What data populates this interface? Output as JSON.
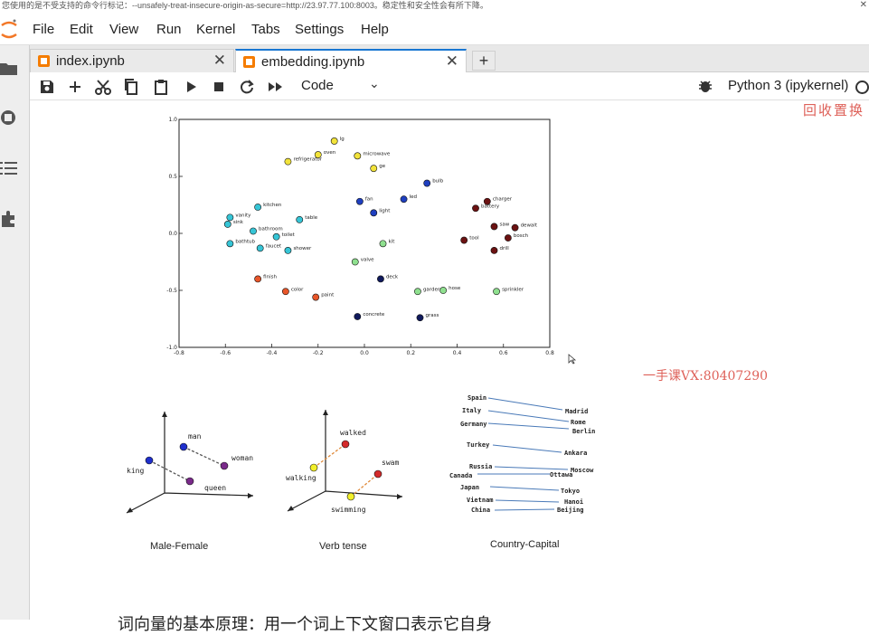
{
  "warning_bar": {
    "text": "您使用的是不受支持的命令行标记：--unsafely-treat-insecure-origin-as-secure=http://23.97.77.100:8003。稳定性和安全性会有所下降。"
  },
  "menu": [
    "File",
    "Edit",
    "View",
    "Run",
    "Kernel",
    "Tabs",
    "Settings",
    "Help"
  ],
  "tabs": [
    {
      "label": "index.ipynb",
      "active": false
    },
    {
      "label": "embedding.ipynb",
      "active": true
    }
  ],
  "toolbar": {
    "cell_type": "Code",
    "kernel": "Python 3 (ipykernel)"
  },
  "watermarks": {
    "top_right": "回收置换",
    "middle": "一手课VX:80407290"
  },
  "analogy_captions": [
    "Male-Female",
    "Verb tense",
    "Country-Capital"
  ],
  "male_female_words": [
    "man",
    "woman",
    "king",
    "queen"
  ],
  "verb_tense_words": [
    "walked",
    "swam",
    "walking",
    "swimming"
  ],
  "countries": [
    "Spain",
    "Italy",
    "Germany",
    "Turkey",
    "Russia",
    "Canada",
    "Japan",
    "Vietnam",
    "China"
  ],
  "capitals": [
    "Madrid",
    "Rome",
    "Berlin",
    "Ankara",
    "Moscow",
    "Ottawa",
    "Tokyo",
    "Hanoi",
    "Beijing"
  ],
  "bottom_text": "词向量的基本原理：用一个词上下文窗口表示它自身",
  "colors": {
    "accent": "#1976d2",
    "tab_icon": "#f57c00",
    "watermark": "#d9463d"
  },
  "chart_data": {
    "type": "scatter",
    "xlim": [
      -0.8,
      0.8
    ],
    "ylim": [
      -1.0,
      1.0
    ],
    "x_ticks": [
      "-0.8",
      "-0.6",
      "-0.4",
      "-0.2",
      "0.0",
      "0.2",
      "0.4",
      "0.6",
      "0.8"
    ],
    "y_ticks": [
      "1.0",
      "0.5",
      "0.0",
      "-0.5",
      "-1.0"
    ],
    "grid": false,
    "series": [
      {
        "color": "#f2e33a",
        "points": [
          {
            "label": "lg",
            "x": -0.13,
            "y": 0.81
          },
          {
            "label": "oven",
            "x": -0.2,
            "y": 0.69
          },
          {
            "label": "microwave",
            "x": -0.03,
            "y": 0.68
          },
          {
            "label": "refrigerator",
            "x": -0.33,
            "y": 0.63
          },
          {
            "label": "ge",
            "x": 0.04,
            "y": 0.57
          }
        ]
      },
      {
        "color": "#1f3fbf",
        "points": [
          {
            "label": "bulb",
            "x": 0.27,
            "y": 0.44
          },
          {
            "label": "led",
            "x": 0.17,
            "y": 0.3
          },
          {
            "label": "fan",
            "x": -0.02,
            "y": 0.28
          },
          {
            "label": "light",
            "x": 0.04,
            "y": 0.18
          }
        ]
      },
      {
        "color": "#6b1212",
        "points": [
          {
            "label": "charger",
            "x": 0.53,
            "y": 0.28
          },
          {
            "label": "battery",
            "x": 0.48,
            "y": 0.22
          },
          {
            "label": "saw",
            "x": 0.56,
            "y": 0.06
          },
          {
            "label": "dewalt",
            "x": 0.65,
            "y": 0.05
          },
          {
            "label": "bosch",
            "x": 0.62,
            "y": -0.04
          },
          {
            "label": "tool",
            "x": 0.43,
            "y": -0.06
          },
          {
            "label": "drill",
            "x": 0.56,
            "y": -0.15
          }
        ]
      },
      {
        "color": "#36c5d6",
        "points": [
          {
            "label": "kitchen",
            "x": -0.46,
            "y": 0.23
          },
          {
            "label": "table",
            "x": -0.28,
            "y": 0.12
          },
          {
            "label": "vanity",
            "x": -0.58,
            "y": 0.14
          },
          {
            "label": "sink",
            "x": -0.59,
            "y": 0.08
          },
          {
            "label": "bathroom",
            "x": -0.48,
            "y": 0.02
          },
          {
            "label": "toilet",
            "x": -0.38,
            "y": -0.03
          },
          {
            "label": "bathtub",
            "x": -0.58,
            "y": -0.09
          },
          {
            "label": "faucet",
            "x": -0.45,
            "y": -0.13
          },
          {
            "label": "shower",
            "x": -0.33,
            "y": -0.15
          }
        ]
      },
      {
        "color": "#8fe08f",
        "points": [
          {
            "label": "kit",
            "x": 0.08,
            "y": -0.09
          },
          {
            "label": "valve",
            "x": -0.04,
            "y": -0.25
          },
          {
            "label": "garden",
            "x": 0.23,
            "y": -0.51
          },
          {
            "label": "hose",
            "x": 0.34,
            "y": -0.5
          },
          {
            "label": "sprinkler",
            "x": 0.57,
            "y": -0.51
          }
        ]
      },
      {
        "color": "#e8562a",
        "points": [
          {
            "label": "finish",
            "x": -0.46,
            "y": -0.4
          },
          {
            "label": "color",
            "x": -0.34,
            "y": -0.51
          },
          {
            "label": "paint",
            "x": -0.21,
            "y": -0.56
          }
        ]
      },
      {
        "color": "#101a5c",
        "points": [
          {
            "label": "deck",
            "x": 0.07,
            "y": -0.4
          },
          {
            "label": "concrete",
            "x": -0.03,
            "y": -0.73
          },
          {
            "label": "grass",
            "x": 0.24,
            "y": -0.74
          }
        ]
      }
    ]
  }
}
